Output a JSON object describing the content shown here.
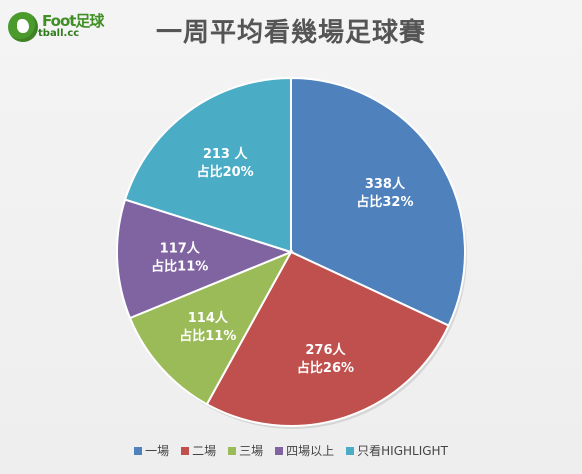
{
  "logo": {
    "top_text": "Foot足球",
    "bottom_text": "tball.cc"
  },
  "chart_data": {
    "type": "pie",
    "title": "一周平均看幾場足球賽",
    "slices": [
      {
        "name": "一場",
        "count_label": "338人",
        "percent_label": "占比32%",
        "value": 338,
        "color": "#4f81bd"
      },
      {
        "name": "二場",
        "count_label": "276人",
        "percent_label": "占比26%",
        "value": 276,
        "color": "#c0504d"
      },
      {
        "name": "三場",
        "count_label": "114人",
        "percent_label": "占比11%",
        "value": 114,
        "color": "#9bbb59"
      },
      {
        "name": "四場以上",
        "count_label": "117人",
        "percent_label": "占比11%",
        "value": 117,
        "color": "#8064a2"
      },
      {
        "name": "只看HIGHLIGHT",
        "count_label": "213 人",
        "percent_label": "占比20%",
        "value": 213,
        "color": "#4bacc6"
      }
    ],
    "legend_position": "bottom"
  }
}
